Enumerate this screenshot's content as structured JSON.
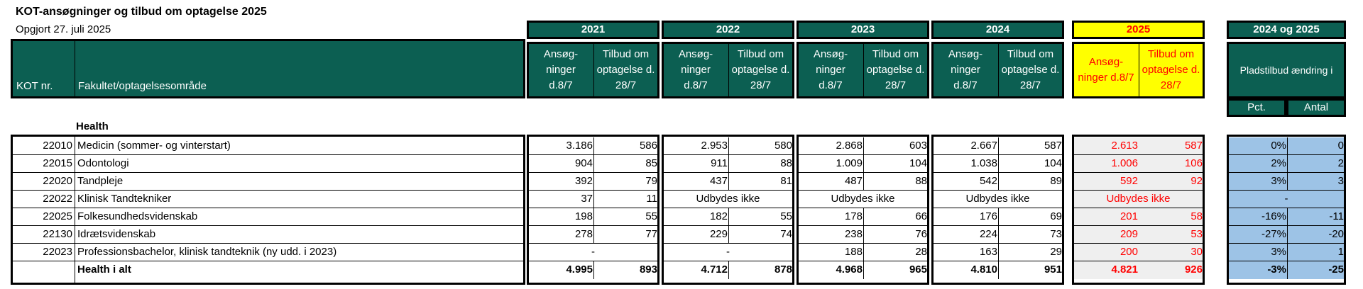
{
  "title": "KOT-ansøgninger og tilbud om optagelse 2025",
  "subtitle": "Opgjort 27. juli 2025",
  "header": {
    "kot_nr": "KOT nr.",
    "faculty": "Fakultet/optagelsesområde",
    "years": [
      "2021",
      "2022",
      "2023",
      "2024",
      "2025"
    ],
    "year_cols": [
      [
        "Ansøg-\nninger\nd.8/7",
        "Tilbud om\noptagelse d.\n28/7"
      ],
      [
        "Ansøg-\nninger\nd.8/7",
        "Tilbud om\noptagelse d.\n28/7"
      ],
      [
        "Ansøg-\nninger\nd.8/7",
        "Tilbud om\noptagelse d. 28/7"
      ],
      [
        "Ansøg-\nninger\nd.8/7",
        "Tilbud om\noptagelse d.\n28/7"
      ],
      [
        "Ansøg-\nninger d.8/7",
        "Tilbud om\noptagelse d.\n28/7"
      ]
    ],
    "change_title": "2024 og 2025",
    "change_sub": "Pladstilbud ændring i",
    "pct": "Pct.",
    "antal": "Antal"
  },
  "section": "Health",
  "rows": [
    {
      "kot": "22010",
      "name": "Medicin (sommer- og vinterstart)",
      "y2021": [
        "3.186",
        "586"
      ],
      "y2022": [
        "2.953",
        "580"
      ],
      "y2023": [
        "2.868",
        "603"
      ],
      "y2024": [
        "2.667",
        "587"
      ],
      "y2025": [
        "2.613",
        "587"
      ],
      "pct": "0%",
      "antal": "0"
    },
    {
      "kot": "22015",
      "name": "Odontologi",
      "y2021": [
        "904",
        "85"
      ],
      "y2022": [
        "911",
        "88"
      ],
      "y2023": [
        "1.009",
        "104"
      ],
      "y2024": [
        "1.038",
        "104"
      ],
      "y2025": [
        "1.006",
        "106"
      ],
      "pct": "2%",
      "antal": "2"
    },
    {
      "kot": "22020",
      "name": "Tandpleje",
      "y2021": [
        "392",
        "79"
      ],
      "y2022": [
        "437",
        "81"
      ],
      "y2023": [
        "487",
        "88"
      ],
      "y2024": [
        "542",
        "89"
      ],
      "y2025": [
        "592",
        "92"
      ],
      "pct": "3%",
      "antal": "3"
    },
    {
      "kot": "22022",
      "name": "Klinisk Tandtekniker",
      "y2021": [
        "37",
        "11"
      ],
      "y2022_text": "Udbydes ikke",
      "y2023_text": "Udbydes ikke",
      "y2024_text": "Udbydes ikke",
      "y2025_text": "Udbydes ikke",
      "change_text": "-"
    },
    {
      "kot": "22025",
      "name": "Folkesundhedsvidenskab",
      "y2021": [
        "198",
        "55"
      ],
      "y2022": [
        "182",
        "55"
      ],
      "y2023": [
        "178",
        "66"
      ],
      "y2024": [
        "176",
        "69"
      ],
      "y2025": [
        "201",
        "58"
      ],
      "pct": "-16%",
      "antal": "-11"
    },
    {
      "kot": "22130",
      "name": "Idrætsvidenskab",
      "y2021": [
        "278",
        "77"
      ],
      "y2022": [
        "229",
        "74"
      ],
      "y2023": [
        "238",
        "76"
      ],
      "y2024": [
        "224",
        "73"
      ],
      "y2025": [
        "209",
        "53"
      ],
      "pct": "-27%",
      "antal": "-20"
    },
    {
      "kot": "22023",
      "name": "Professionsbachelor, klinisk tandteknik (ny udd. i 2023)",
      "y2021_text": "-",
      "y2022_text": "-",
      "y2023": [
        "188",
        "28"
      ],
      "y2024": [
        "163",
        "29"
      ],
      "y2025": [
        "200",
        "30"
      ],
      "pct": "3%",
      "antal": "1"
    },
    {
      "kot": "",
      "name": "Health i alt",
      "y2021": [
        "4.995",
        "893"
      ],
      "y2022": [
        "4.712",
        "878"
      ],
      "y2023": [
        "4.968",
        "965"
      ],
      "y2024": [
        "4.810",
        "951"
      ],
      "y2025": [
        "4.821",
        "926"
      ],
      "pct": "-3%",
      "antal": "-25",
      "total": true
    }
  ]
}
